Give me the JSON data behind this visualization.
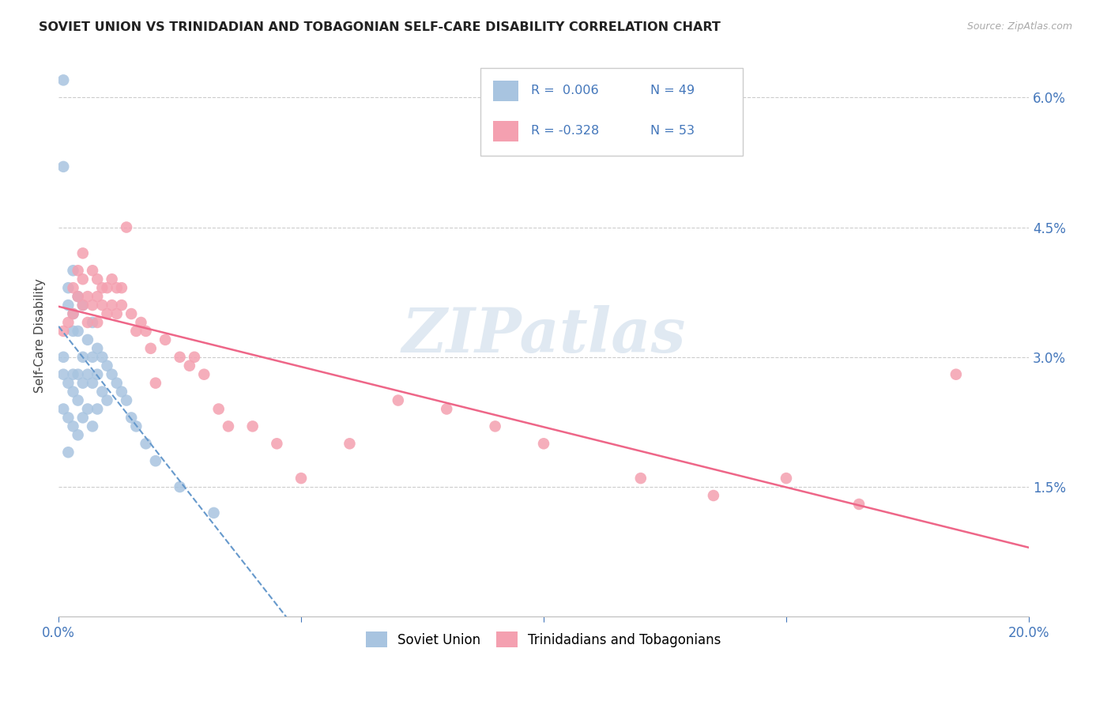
{
  "title": "SOVIET UNION VS TRINIDADIAN AND TOBAGONIAN SELF-CARE DISABILITY CORRELATION CHART",
  "source": "Source: ZipAtlas.com",
  "ylabel_label": "Self-Care Disability",
  "xlim": [
    0.0,
    0.2
  ],
  "ylim": [
    0.0,
    0.065
  ],
  "xticks": [
    0.0,
    0.05,
    0.1,
    0.15,
    0.2
  ],
  "xtick_labels": [
    "0.0%",
    "",
    "",
    "",
    "20.0%"
  ],
  "yticks": [
    0.0,
    0.015,
    0.03,
    0.045,
    0.06
  ],
  "ytick_labels": [
    "",
    "1.5%",
    "3.0%",
    "4.5%",
    "6.0%"
  ],
  "grid_color": "#cccccc",
  "background_color": "#ffffff",
  "soviet_color": "#a8c4e0",
  "trinidadian_color": "#f4a0b0",
  "soviet_line_color": "#6699cc",
  "trinidadian_line_color": "#ee6688",
  "R_soviet": 0.006,
  "N_soviet": 49,
  "R_trinidadian": -0.328,
  "N_trinidadian": 53,
  "legend_label_soviet": "Soviet Union",
  "legend_label_trinidadian": "Trinidadians and Tobagonians",
  "watermark": "ZIPatlas",
  "soviet_x": [
    0.001,
    0.001,
    0.001,
    0.001,
    0.001,
    0.002,
    0.002,
    0.002,
    0.002,
    0.002,
    0.003,
    0.003,
    0.003,
    0.003,
    0.003,
    0.003,
    0.004,
    0.004,
    0.004,
    0.004,
    0.004,
    0.005,
    0.005,
    0.005,
    0.005,
    0.006,
    0.006,
    0.006,
    0.007,
    0.007,
    0.007,
    0.007,
    0.008,
    0.008,
    0.008,
    0.009,
    0.009,
    0.01,
    0.01,
    0.011,
    0.012,
    0.013,
    0.014,
    0.015,
    0.016,
    0.018,
    0.02,
    0.025,
    0.032
  ],
  "soviet_y": [
    0.062,
    0.052,
    0.03,
    0.028,
    0.024,
    0.038,
    0.036,
    0.027,
    0.023,
    0.019,
    0.04,
    0.035,
    0.033,
    0.028,
    0.026,
    0.022,
    0.037,
    0.033,
    0.028,
    0.025,
    0.021,
    0.036,
    0.03,
    0.027,
    0.023,
    0.032,
    0.028,
    0.024,
    0.034,
    0.03,
    0.027,
    0.022,
    0.031,
    0.028,
    0.024,
    0.03,
    0.026,
    0.029,
    0.025,
    0.028,
    0.027,
    0.026,
    0.025,
    0.023,
    0.022,
    0.02,
    0.018,
    0.015,
    0.012
  ],
  "trinidadian_x": [
    0.001,
    0.002,
    0.003,
    0.003,
    0.004,
    0.004,
    0.005,
    0.005,
    0.005,
    0.006,
    0.006,
    0.007,
    0.007,
    0.008,
    0.008,
    0.008,
    0.009,
    0.009,
    0.01,
    0.01,
    0.011,
    0.011,
    0.012,
    0.012,
    0.013,
    0.013,
    0.014,
    0.015,
    0.016,
    0.017,
    0.018,
    0.019,
    0.02,
    0.022,
    0.025,
    0.027,
    0.028,
    0.03,
    0.033,
    0.035,
    0.04,
    0.045,
    0.05,
    0.06,
    0.07,
    0.08,
    0.09,
    0.1,
    0.12,
    0.135,
    0.15,
    0.165,
    0.185
  ],
  "trinidadian_y": [
    0.033,
    0.034,
    0.038,
    0.035,
    0.04,
    0.037,
    0.042,
    0.039,
    0.036,
    0.037,
    0.034,
    0.04,
    0.036,
    0.039,
    0.037,
    0.034,
    0.038,
    0.036,
    0.038,
    0.035,
    0.039,
    0.036,
    0.038,
    0.035,
    0.038,
    0.036,
    0.045,
    0.035,
    0.033,
    0.034,
    0.033,
    0.031,
    0.027,
    0.032,
    0.03,
    0.029,
    0.03,
    0.028,
    0.024,
    0.022,
    0.022,
    0.02,
    0.016,
    0.02,
    0.025,
    0.024,
    0.022,
    0.02,
    0.016,
    0.014,
    0.016,
    0.013,
    0.028
  ]
}
